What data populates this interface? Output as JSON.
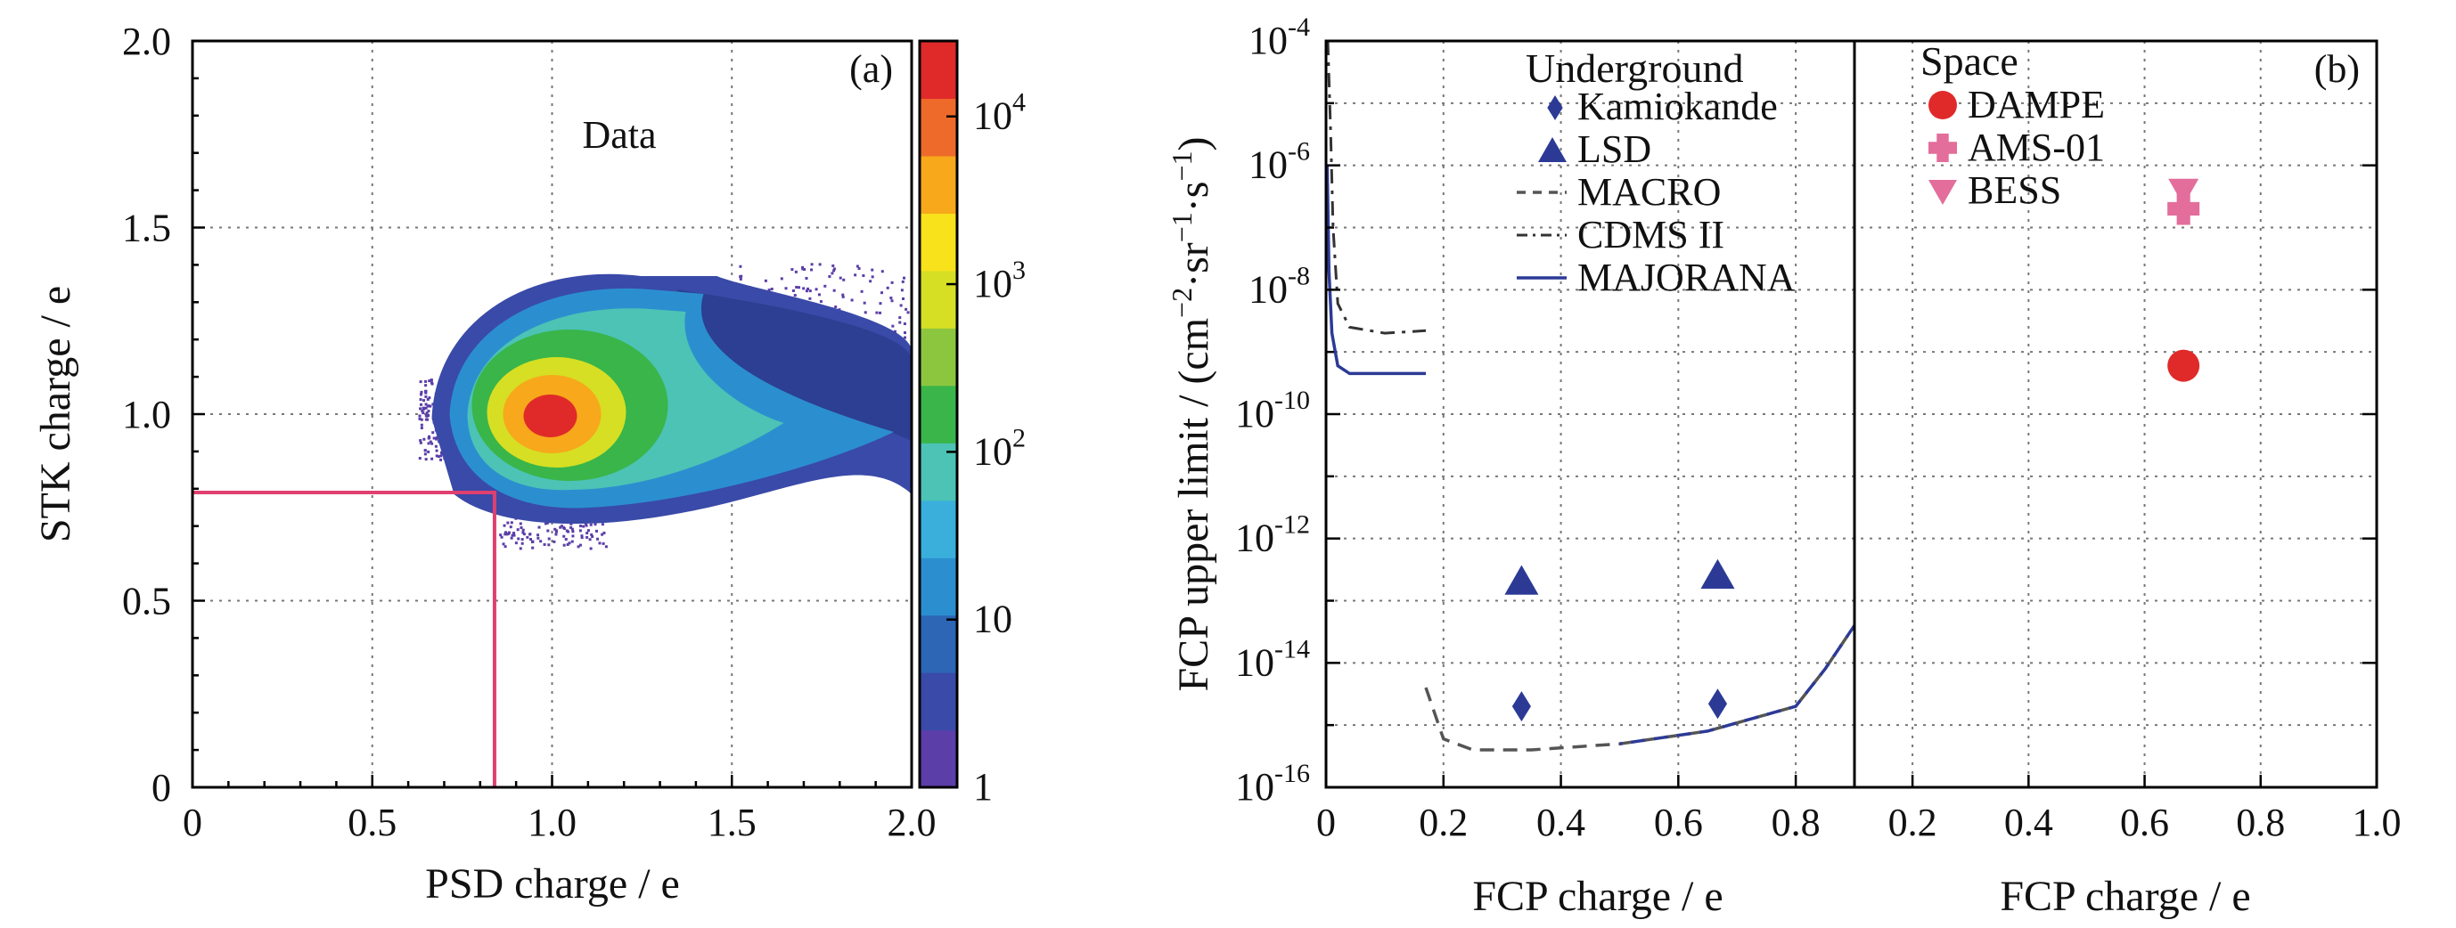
{
  "colors": {
    "cut_line": "#e0406f",
    "underground": "#2c3a96",
    "dampe": "#e02a2a",
    "ams": "#e36d9b",
    "bess": "#e36d9b",
    "dashed_curve": "#555555",
    "colorbar": [
      "#5b3ea8",
      "#3a4aa8",
      "#2c66b5",
      "#2b8fcf",
      "#3aafdc",
      "#4cc3b5",
      "#39b54a",
      "#8cc63f",
      "#d6df23",
      "#f7e21b",
      "#f7a81b",
      "#ee6a2a",
      "#e02a2a"
    ]
  },
  "chart_data": [
    {
      "type": "heatmap",
      "panel_label": "(a)",
      "annotation": "Data",
      "xlabel": "PSD charge / e",
      "ylabel": "STK charge / e",
      "xlim": [
        0,
        2.0
      ],
      "ylim": [
        0,
        2.0
      ],
      "x_ticks": [
        "0",
        "0.5",
        "1.0",
        "1.5",
        "2.0"
      ],
      "y_ticks": [
        "0",
        "0.5",
        "1.0",
        "1.5",
        "2.0"
      ],
      "grid": true,
      "colorbar": {
        "scale": "log",
        "ticks": [
          {
            "mantissa": "1",
            "exp": ""
          },
          {
            "mantissa": "10",
            "exp": ""
          },
          {
            "mantissa": "10",
            "exp": "2"
          },
          {
            "mantissa": "10",
            "exp": "3"
          },
          {
            "mantissa": "10",
            "exp": "4"
          }
        ]
      },
      "density_core": {
        "x": 1.0,
        "y": 1.0
      },
      "selection_box": {
        "x_max": 0.84,
        "y_max": 0.79
      }
    },
    {
      "type": "scatter",
      "panel_label": "(b)",
      "ylabel": {
        "prefix": "FCP upper limit / (cm",
        "e1": "−2",
        "mid1": "·sr",
        "e2": "−1",
        "mid2": "·s",
        "e3": "−1",
        "suffix": ")"
      },
      "y_scale": "log",
      "y_ticks": [
        "-16",
        "-14",
        "-12",
        "-10",
        "-8",
        "-6",
        "-4"
      ],
      "y_tick_base": "10",
      "grid": true,
      "panels": [
        {
          "name": "Underground",
          "xlabel": "FCP charge / e",
          "xlim": [
            0,
            0.9
          ],
          "x_ticks": [
            "0",
            "0.2",
            "0.4",
            "0.6",
            "0.8"
          ],
          "legend_title": "Underground",
          "series": [
            {
              "name": "Kamiokande",
              "marker": "diamond",
              "points": [
                {
                  "x": 0.333,
                  "y": 2e-15
                },
                {
                  "x": 0.667,
                  "y": 2.2e-15
                }
              ]
            },
            {
              "name": "LSD",
              "marker": "triangle-up",
              "points": [
                {
                  "x": 0.333,
                  "y": 2e-13
                },
                {
                  "x": 0.667,
                  "y": 2.5e-13
                }
              ]
            },
            {
              "name": "MACRO",
              "line": "dashed",
              "points": [
                {
                  "x": 0.17,
                  "y": 4e-15
                },
                {
                  "x": 0.2,
                  "y": 6e-16
                },
                {
                  "x": 0.25,
                  "y": 4e-16
                },
                {
                  "x": 0.35,
                  "y": 4e-16
                },
                {
                  "x": 0.5,
                  "y": 5e-16
                },
                {
                  "x": 0.65,
                  "y": 8e-16
                },
                {
                  "x": 0.8,
                  "y": 2e-15
                },
                {
                  "x": 0.85,
                  "y": 8e-15
                },
                {
                  "x": 0.9,
                  "y": 4e-14
                }
              ]
            },
            {
              "name": "CDMS II",
              "line": "dash-dot",
              "points": [
                {
                  "x": 0.003,
                  "y": 0.0001
                },
                {
                  "x": 0.008,
                  "y": 3e-06
                },
                {
                  "x": 0.012,
                  "y": 1e-07
                },
                {
                  "x": 0.02,
                  "y": 6e-09
                },
                {
                  "x": 0.04,
                  "y": 2.5e-09
                },
                {
                  "x": 0.1,
                  "y": 2e-09
                },
                {
                  "x": 0.17,
                  "y": 2.2e-09
                }
              ]
            },
            {
              "name": "MAJORANA",
              "line": "solid",
              "points": [
                {
                  "x": 0.002,
                  "y": 1e-06
                },
                {
                  "x": 0.005,
                  "y": 2e-08
                },
                {
                  "x": 0.01,
                  "y": 2e-09
                },
                {
                  "x": 0.02,
                  "y": 6e-10
                },
                {
                  "x": 0.04,
                  "y": 4.5e-10
                },
                {
                  "x": 0.17,
                  "y": 4.5e-10
                }
              ]
            }
          ]
        },
        {
          "name": "Space",
          "xlabel": "FCP charge / e",
          "xlim": [
            0.1,
            1.0
          ],
          "x_ticks": [
            "0.2",
            "0.4",
            "0.6",
            "0.8",
            "1.0"
          ],
          "legend_title": "Space",
          "series": [
            {
              "name": "DAMPE",
              "marker": "circle",
              "points": [
                {
                  "x": 0.667,
                  "y": 6e-10
                }
              ]
            },
            {
              "name": "AMS-01",
              "marker": "plus",
              "points": [
                {
                  "x": 0.667,
                  "y": 2e-07
                }
              ]
            },
            {
              "name": "BESS",
              "marker": "triangle-down",
              "points": [
                {
                  "x": 0.667,
                  "y": 4e-07
                }
              ]
            }
          ]
        }
      ]
    }
  ]
}
